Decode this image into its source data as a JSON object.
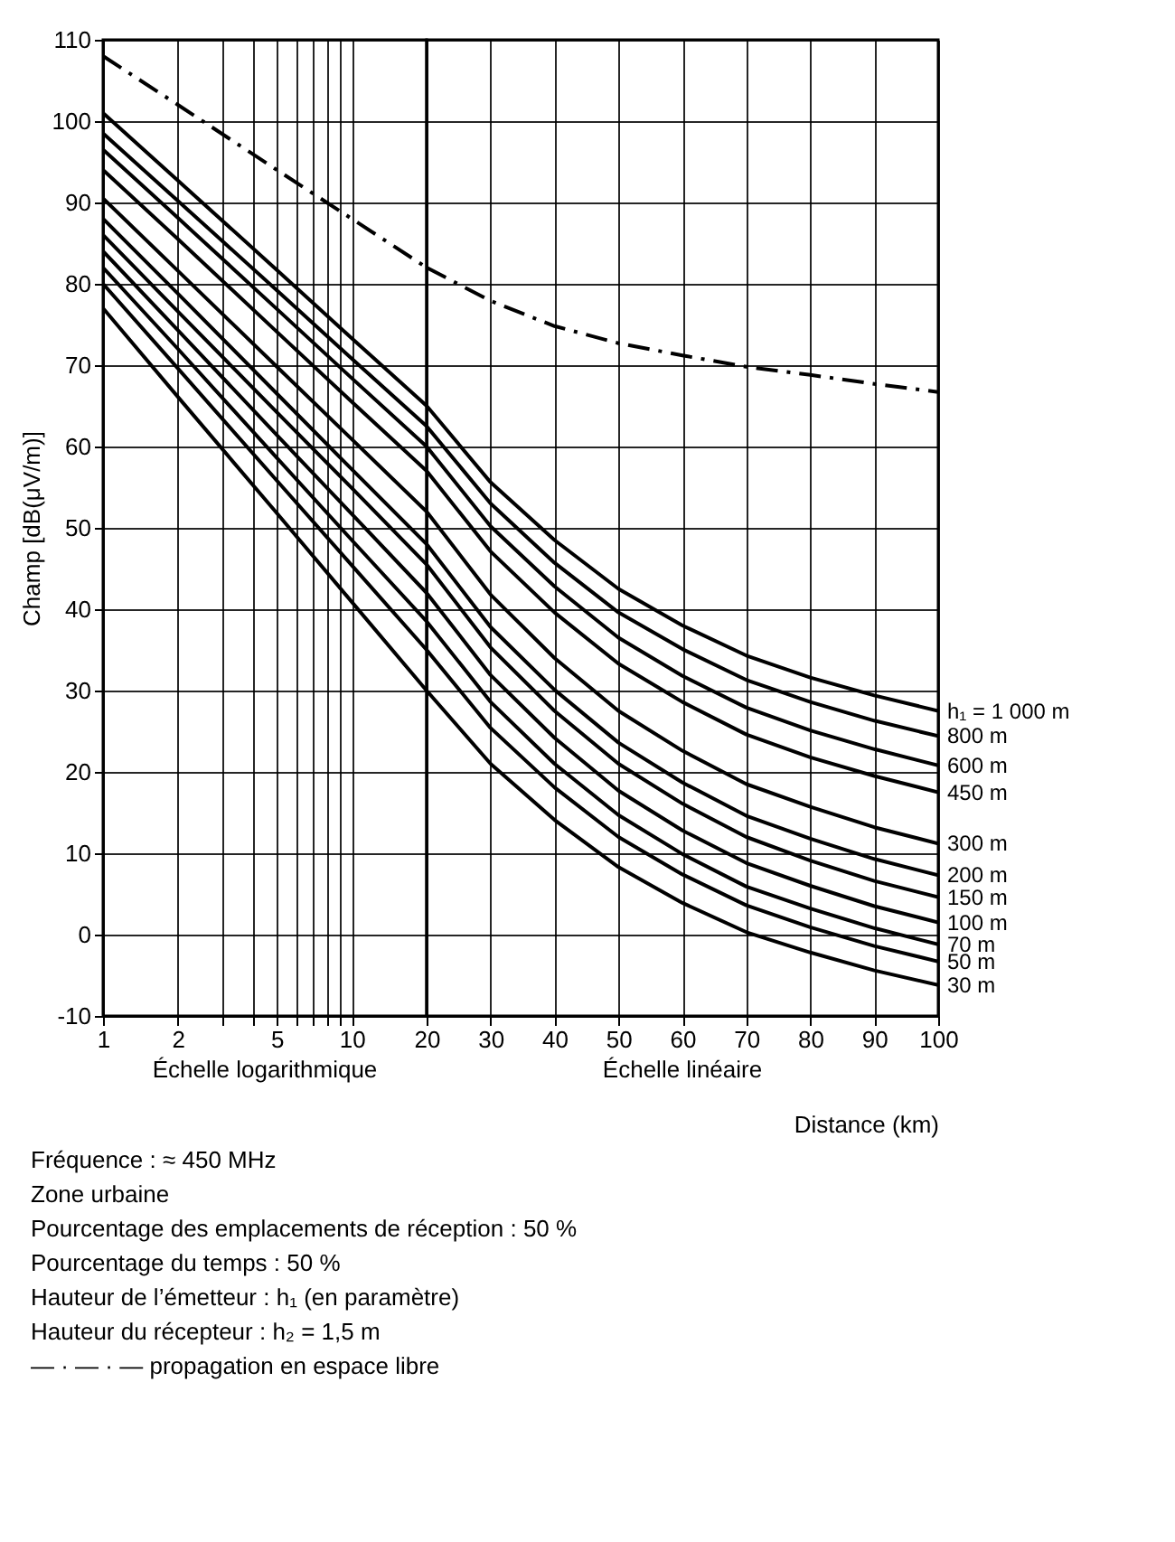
{
  "chart_data": [
    {
      "type": "line",
      "ylabel": "Champ [dB(μV/m)]",
      "xlim": [
        1,
        20
      ],
      "ylim": [
        -10,
        110
      ],
      "log": "x",
      "grid": true,
      "marker": "none",
      "xticks": [
        1,
        2,
        {
          "value": 3,
          "label": null
        },
        {
          "value": 4,
          "label": null
        },
        5,
        {
          "value": 6,
          "label": null
        },
        {
          "value": 7,
          "label": null
        },
        {
          "value": 8,
          "label": null
        },
        {
          "value": 9,
          "label": null
        },
        10
      ],
      "yticks": [
        -10,
        0,
        10,
        20,
        30,
        40,
        50,
        60,
        70,
        80,
        90,
        100,
        110
      ],
      "annotations": [
        "Échelle logarithmique",
        "Fréquence : ≈ 450 MHz",
        "Zone urbaine",
        "Pourcentage des emplacements de réception : 50 %",
        "Pourcentage du temps : 50 %",
        "Hauteur de l’émetteur : h₁ (en paramètre)",
        "Hauteur du récepteur : h₂ = 1,5 m",
        "— · — · — propagation en espace libre"
      ],
      "x": [
        1,
        2,
        5,
        10,
        20
      ],
      "series": [
        {
          "color": "#000000",
          "line_style": "dashed",
          "values": [
            108,
            102,
            94,
            88,
            82
          ]
        },
        {
          "color": "#000000",
          "values": [
            101,
            92.7,
            81.7,
            73.3,
            65
          ]
        },
        {
          "color": "#000000",
          "values": [
            98.5,
            90.2,
            79.2,
            70.8,
            62.5
          ]
        },
        {
          "color": "#000000",
          "values": [
            96.5,
            88.1,
            76.9,
            68.4,
            60
          ]
        },
        {
          "color": "#000000",
          "values": [
            94,
            85.5,
            74.1,
            65.5,
            57
          ]
        },
        {
          "color": "#000000",
          "values": [
            90.5,
            81.6,
            69.8,
            60.9,
            52
          ]
        },
        {
          "color": "#000000",
          "values": [
            88,
            78.8,
            66.5,
            57.2,
            48
          ]
        },
        {
          "color": "#000000",
          "values": [
            86,
            76.6,
            64.2,
            54.9,
            45.5
          ]
        },
        {
          "color": "#000000",
          "values": [
            84,
            74.3,
            61.4,
            51.7,
            42
          ]
        },
        {
          "color": "#000000",
          "values": [
            82,
            72,
            58.6,
            48.5,
            38.5
          ]
        },
        {
          "color": "#000000",
          "values": [
            80,
            69.6,
            55.8,
            45.4,
            35
          ]
        },
        {
          "color": "#000000",
          "values": [
            77,
            66.1,
            51.8,
            40.9,
            30
          ]
        }
      ]
    },
    {
      "type": "line",
      "xlabel": "Distance (km)",
      "xlim": [
        20,
        100
      ],
      "ylim": [
        -10,
        110
      ],
      "tick_labels": "x",
      "grid": true,
      "marker": "none",
      "xticks": [
        20,
        30,
        40,
        50,
        60,
        70,
        80,
        90,
        100
      ],
      "yticks": [
        -10,
        0,
        10,
        20,
        30,
        40,
        50,
        60,
        70,
        80,
        90,
        100,
        110
      ],
      "annotations": [
        "Échelle linéaire"
      ],
      "x": [
        20,
        30,
        40,
        50,
        60,
        70,
        80,
        90,
        100
      ],
      "series": [
        {
          "color": "#000000",
          "line_style": "dashed",
          "values": [
            82,
            77.9,
            74.8,
            72.7,
            71.2,
            69.8,
            68.8,
            67.7,
            66.7
          ]
        },
        {
          "name": "h₁ = 1 000 m",
          "color": "#000000",
          "values": [
            65,
            55.6,
            48.5,
            42.5,
            38,
            34.3,
            31.6,
            29.4,
            27.5
          ]
        },
        {
          "name": "800 m",
          "color": "#000000",
          "values": [
            62.5,
            53,
            45.7,
            39.6,
            35.1,
            31.3,
            28.6,
            26.3,
            24.4
          ]
        },
        {
          "name": "600 m",
          "color": "#000000",
          "values": [
            60,
            50.2,
            42.8,
            36.5,
            31.8,
            27.9,
            25.1,
            22.8,
            20.8
          ]
        },
        {
          "name": "450 m",
          "color": "#000000",
          "values": [
            57,
            47.1,
            39.6,
            33.3,
            28.6,
            24.6,
            21.8,
            19.5,
            17.5
          ]
        },
        {
          "name": "300 m",
          "color": "#000000",
          "values": [
            52,
            41.8,
            34,
            27.5,
            22.6,
            18.5,
            15.7,
            13.2,
            11.2
          ]
        },
        {
          "name": "200 m",
          "color": "#000000",
          "values": [
            48,
            37.8,
            30.1,
            23.6,
            18.7,
            14.6,
            11.8,
            9.3,
            7.3
          ]
        },
        {
          "name": "150 m",
          "color": "#000000",
          "values": [
            45.5,
            35.3,
            27.5,
            21,
            16.1,
            12,
            9.1,
            6.6,
            4.6
          ]
        },
        {
          "name": "100 m",
          "color": "#000000",
          "values": [
            42,
            31.9,
            24.2,
            17.7,
            12.8,
            8.8,
            6,
            3.5,
            1.5
          ]
        },
        {
          "name": "70 m",
          "color": "#000000",
          "values": [
            38.5,
            28.6,
            21,
            14.7,
            9.9,
            5.9,
            3.2,
            0.8,
            -1.2
          ]
        },
        {
          "name": "50 m",
          "color": "#000000",
          "values": [
            35,
            25.4,
            18.1,
            12,
            7.4,
            3.6,
            0.9,
            -1.4,
            -3.3
          ]
        },
        {
          "name": "30 m",
          "color": "#000000",
          "values": [
            30,
            21,
            14.1,
            8.3,
            3.9,
            0.3,
            -2.2,
            -4.4,
            -6.2
          ]
        }
      ]
    }
  ]
}
